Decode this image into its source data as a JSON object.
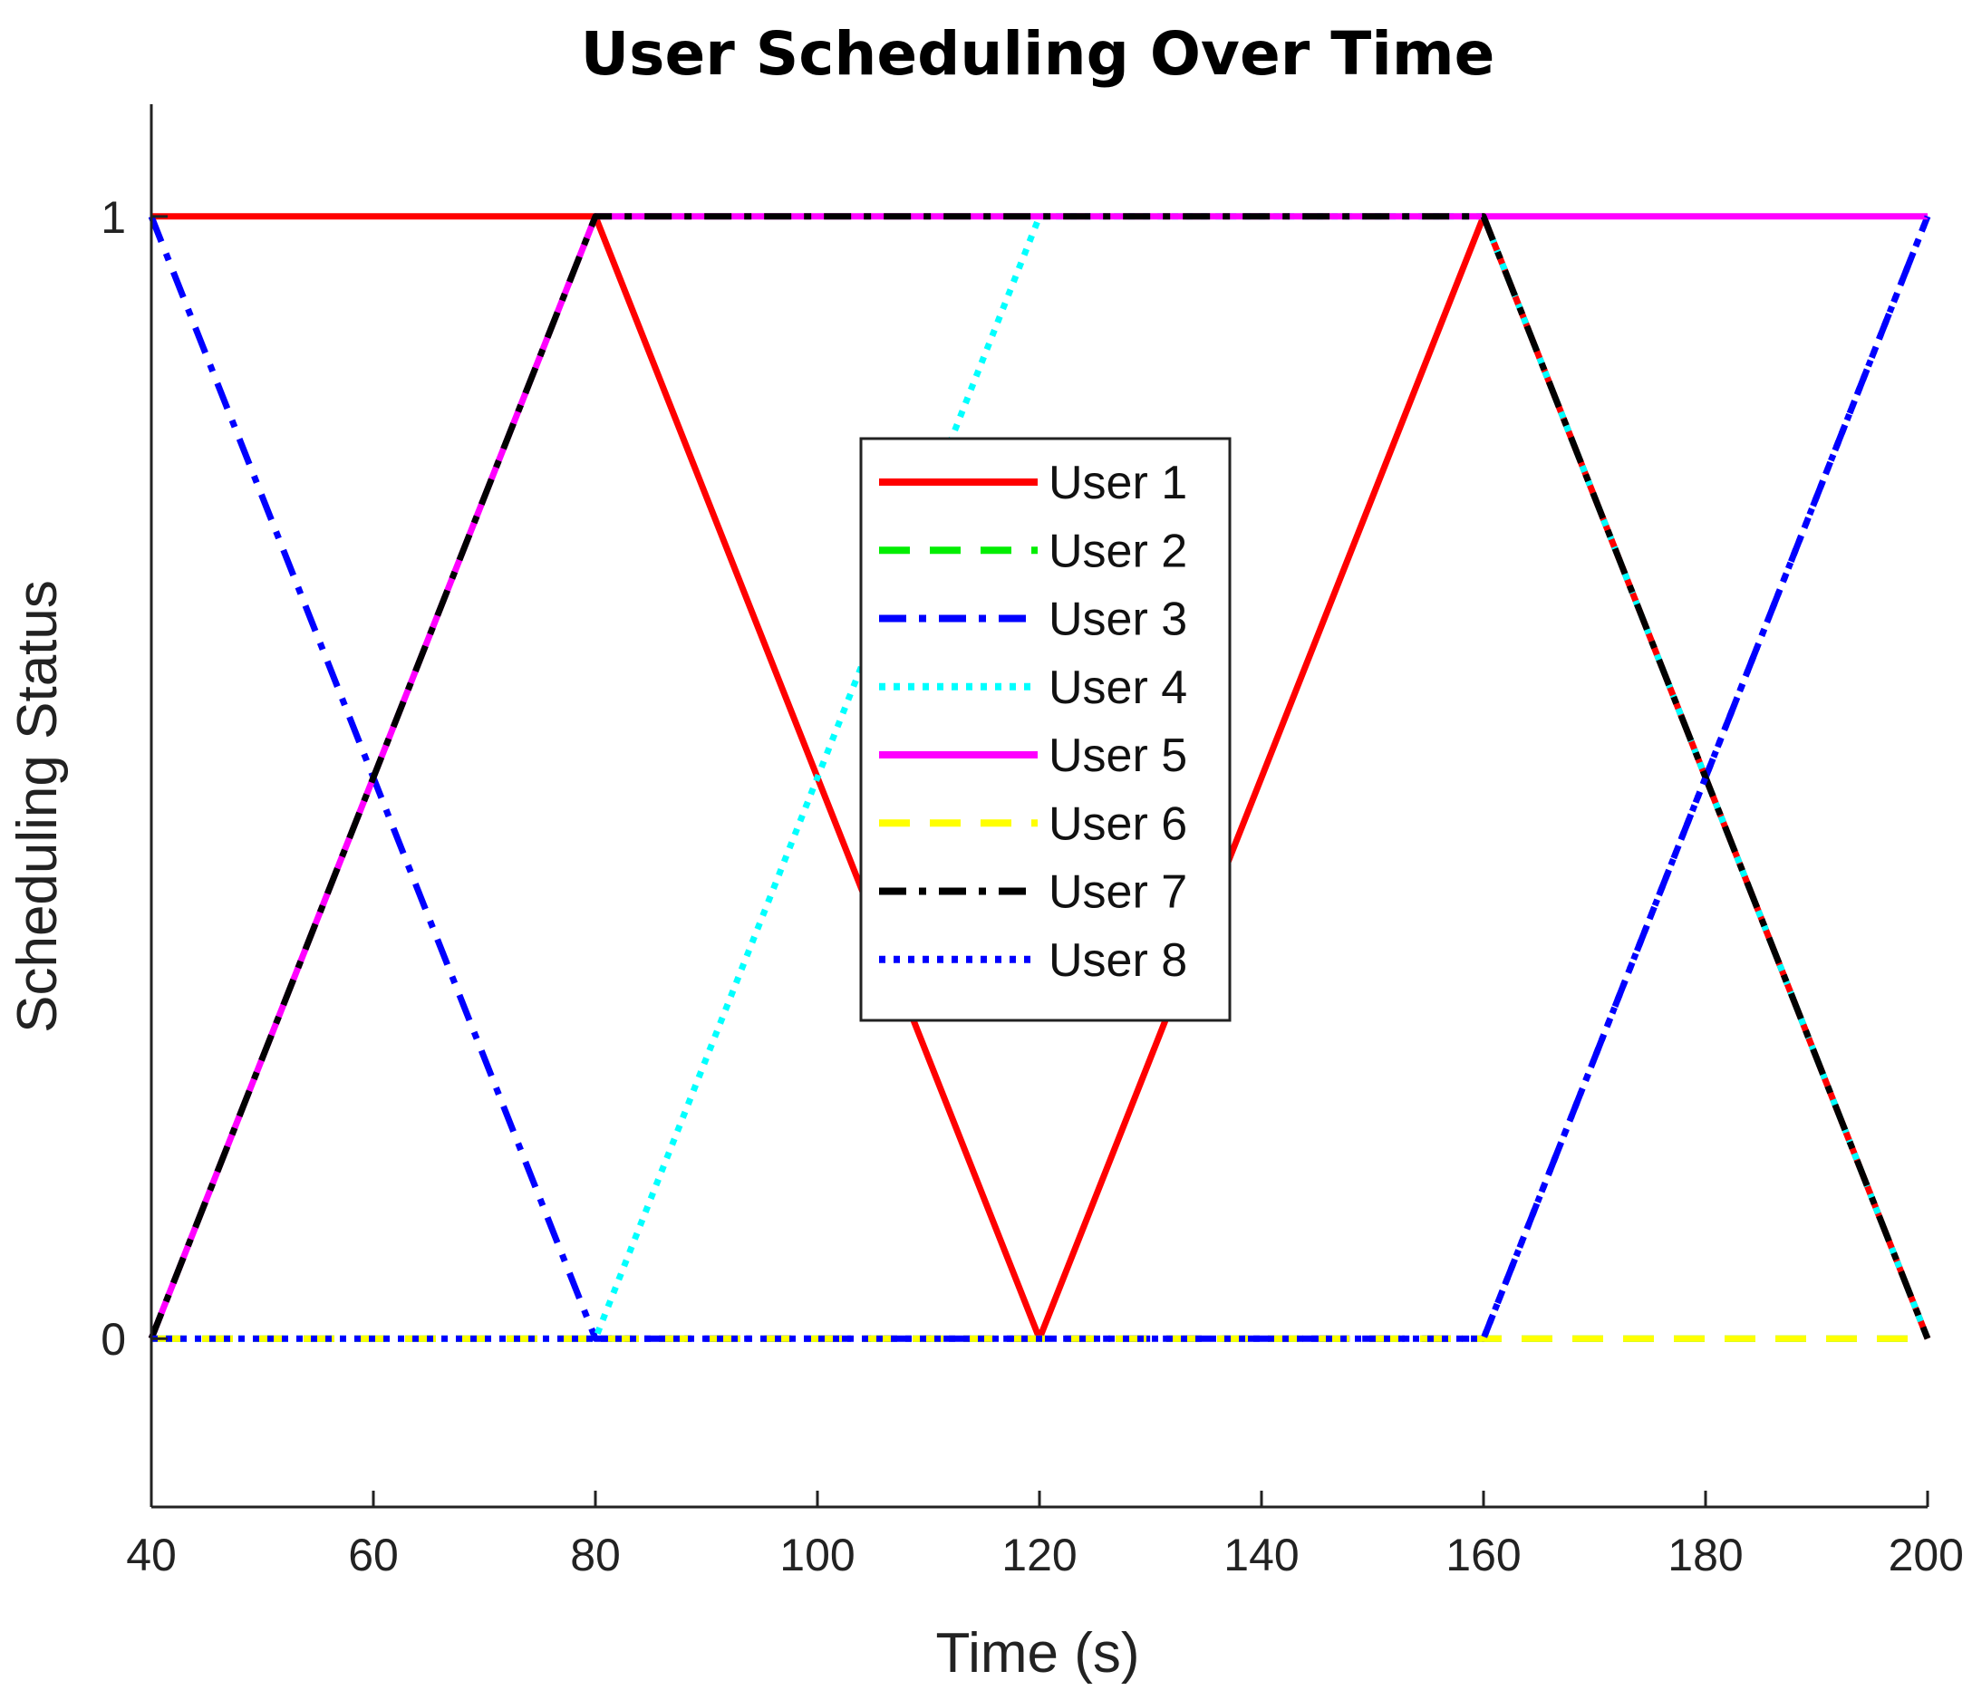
{
  "chart_data": {
    "type": "line",
    "title": "User Scheduling Over Time",
    "xlabel": "Time (s)",
    "ylabel": "Scheduling Status",
    "xlim": [
      40,
      200
    ],
    "ylim": [
      -0.15,
      1.1
    ],
    "xticks": [
      40,
      60,
      80,
      100,
      120,
      140,
      160,
      180,
      200
    ],
    "yticks": [
      0,
      1
    ],
    "grid": false,
    "legend_position": "center",
    "x": [
      40,
      80,
      120,
      160,
      200
    ],
    "series": [
      {
        "name": "User 1",
        "values": [
          1,
          1,
          0,
          1,
          0
        ],
        "color": "#ff0000",
        "style": "solid"
      },
      {
        "name": "User 2",
        "values": [
          0,
          0,
          0,
          0,
          0
        ],
        "color": "#00ee00",
        "style": "dashed"
      },
      {
        "name": "User 3",
        "values": [
          1,
          0,
          0,
          0,
          1
        ],
        "color": "#0000ff",
        "style": "dashdot"
      },
      {
        "name": "User 4",
        "values": [
          0,
          0,
          1,
          1,
          0
        ],
        "color": "#00ffff",
        "style": "dotted"
      },
      {
        "name": "User 5",
        "values": [
          0,
          1,
          1,
          1,
          1
        ],
        "color": "#ff00ff",
        "style": "solid"
      },
      {
        "name": "User 6",
        "values": [
          0,
          0,
          0,
          0,
          0
        ],
        "color": "#ffff00",
        "style": "dashed"
      },
      {
        "name": "User 7",
        "values": [
          0,
          1,
          1,
          1,
          0
        ],
        "color": "#000000",
        "style": "dashdot"
      },
      {
        "name": "User 8",
        "values": [
          0,
          0,
          0,
          0,
          1
        ],
        "color": "#0000ff",
        "style": "dotted"
      }
    ]
  }
}
